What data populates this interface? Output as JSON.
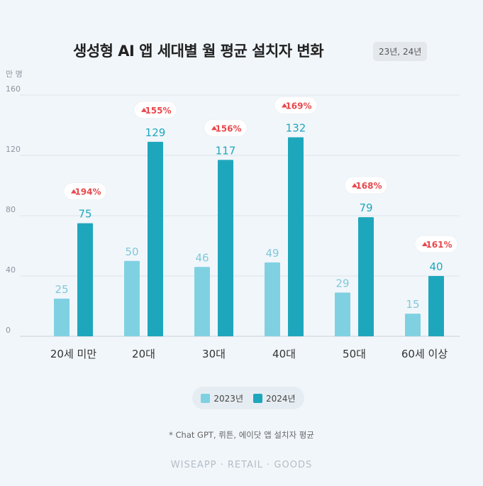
{
  "header": {
    "title": "생성형 AI 앱 세대별 월 평균 설치자 변화",
    "period_badge": "23년, 24년"
  },
  "legend": {
    "items": [
      {
        "label": "2023년",
        "color": "#7fd1e2"
      },
      {
        "label": "2024년",
        "color": "#1ea7bc"
      }
    ]
  },
  "footnote": "* Chat GPT, 뤼튼, 에이닷 앱 설치자 평균",
  "brand": "WISEAPP · RETAIL · GOODS",
  "chart_data": {
    "type": "bar",
    "unit_label": "만 명",
    "categories": [
      "20세 미만",
      "20대",
      "30대",
      "40대",
      "50대",
      "60세 이상"
    ],
    "series": [
      {
        "name": "2023년",
        "values": [
          25,
          50,
          46,
          49,
          29,
          15
        ],
        "color": "#7fd1e2"
      },
      {
        "name": "2024년",
        "values": [
          75,
          129,
          117,
          132,
          79,
          40
        ],
        "color": "#1ea7bc"
      }
    ],
    "growth_labels": [
      "194%",
      "155%",
      "156%",
      "169%",
      "168%",
      "161%"
    ],
    "growth_color": "#e8484c",
    "ylim": [
      0,
      160
    ],
    "yticks": [
      0,
      40,
      80,
      120,
      160
    ],
    "grid": true,
    "legend_position": "bottom"
  }
}
